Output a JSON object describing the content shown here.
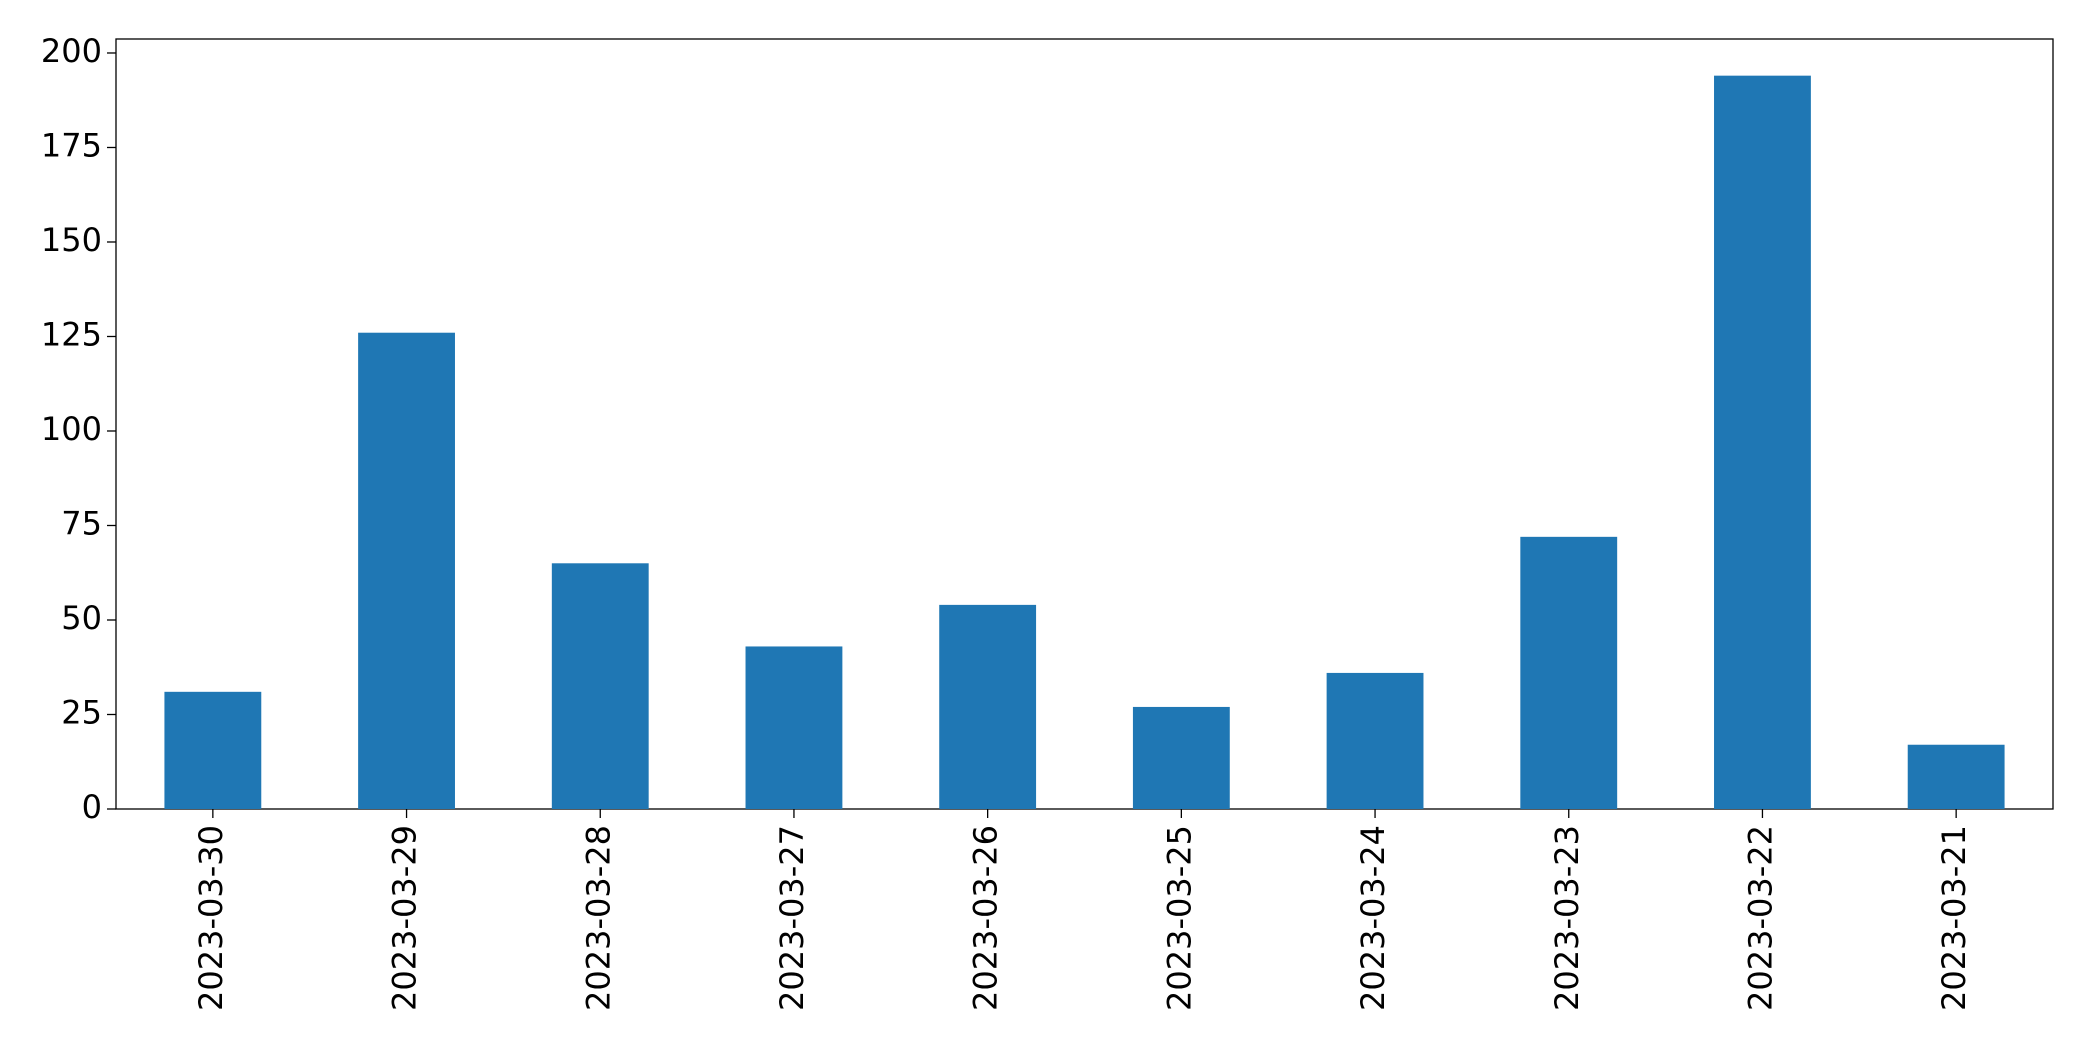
{
  "chart_data": {
    "type": "bar",
    "categories": [
      "2023-03-30",
      "2023-03-29",
      "2023-03-28",
      "2023-03-27",
      "2023-03-26",
      "2023-03-25",
      "2023-03-24",
      "2023-03-23",
      "2023-03-22",
      "2023-03-21"
    ],
    "values": [
      31,
      126,
      65,
      43,
      54,
      27,
      36,
      72,
      194,
      17
    ],
    "color": "#1f77b4",
    "ylim": [
      0,
      203.7
    ],
    "yticks": [
      0,
      25,
      50,
      75,
      100,
      125,
      150,
      175,
      200
    ],
    "grid": false
  }
}
